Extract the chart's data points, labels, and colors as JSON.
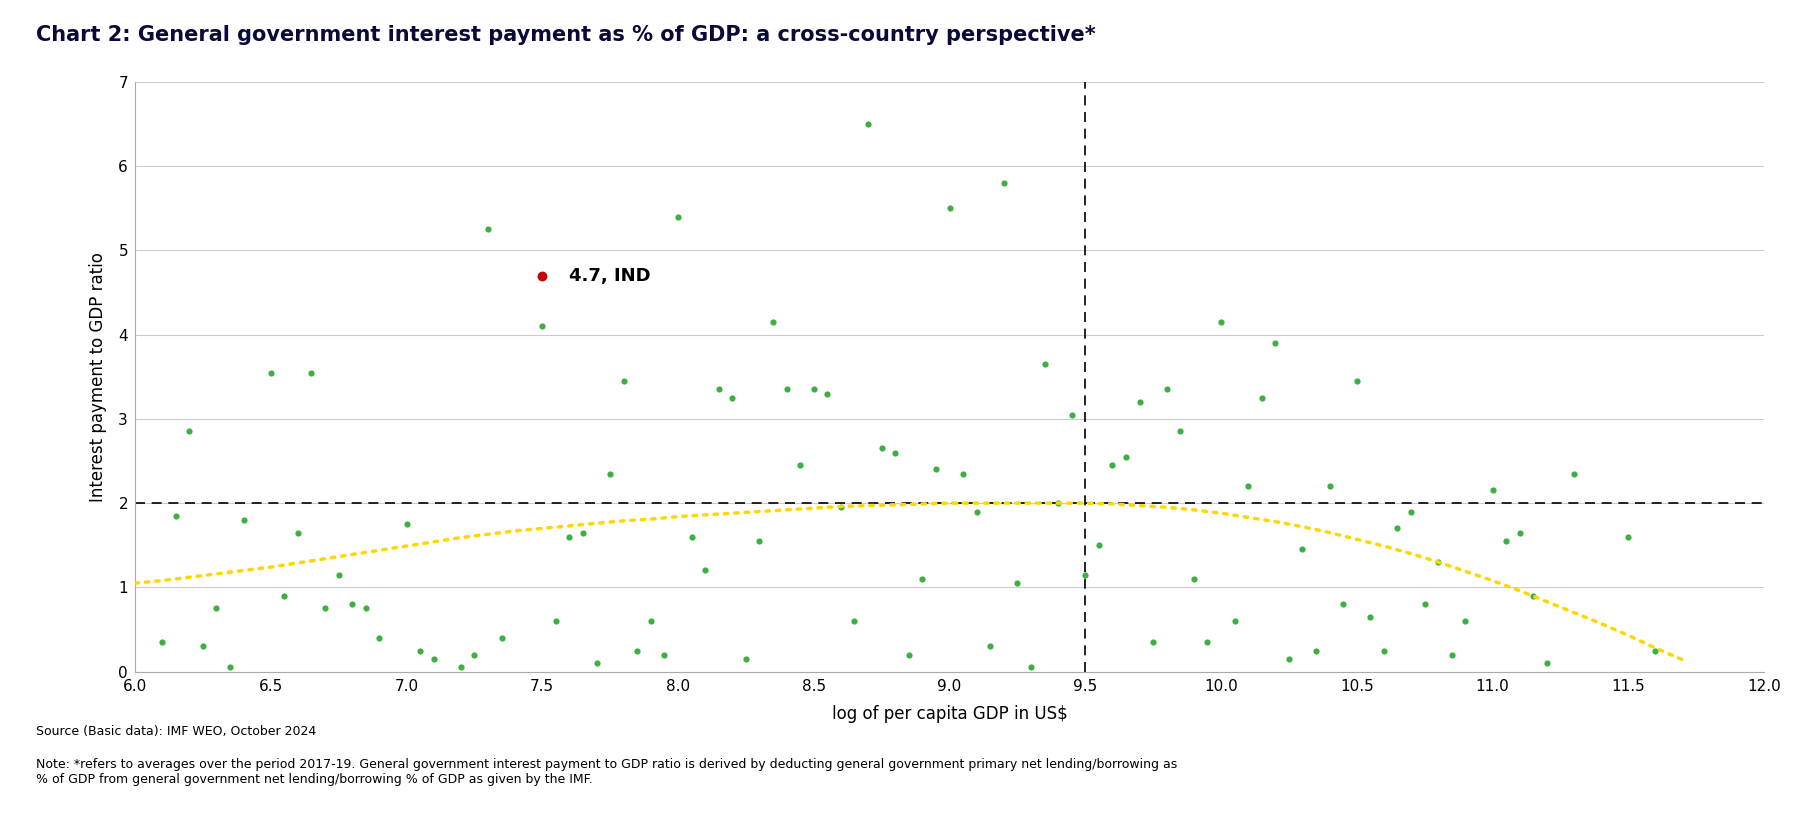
{
  "title": "Chart 2: General government interest payment as % of GDP: a cross-country perspective*",
  "xlabel": "log of per capita GDP in US$",
  "ylabel": "Interest payment to GDP ratio",
  "xlim": [
    6,
    12
  ],
  "ylim": [
    0,
    7
  ],
  "yticks": [
    0,
    1,
    2,
    3,
    4,
    5,
    6,
    7
  ],
  "xticks": [
    6,
    6.5,
    7,
    7.5,
    8,
    8.5,
    9,
    9.5,
    10,
    10.5,
    11,
    11.5,
    12
  ],
  "vline_x": 9.5,
  "hline_y": 2.0,
  "ind_x": 7.5,
  "ind_y": 4.7,
  "ind_label": "4.7, IND",
  "source_text": "Source (Basic data): IMF WEO, October 2024",
  "note_text": "Note: *refers to averages over the period 2017-19. General government interest payment to GDP ratio is derived by deducting general government primary net lending/borrowing as\n% of GDP from general government net lending/borrowing % of GDP as given by the IMF.",
  "scatter_color": "#3CB043",
  "ind_color": "#CC0000",
  "trend_color": "#FFD700",
  "background_color": "#FFFFFF",
  "grid_color": "#CCCCCC",
  "title_color": "#0a0a3a",
  "scatter_points": [
    [
      6.1,
      0.35
    ],
    [
      6.15,
      1.85
    ],
    [
      6.2,
      2.85
    ],
    [
      6.25,
      0.3
    ],
    [
      6.3,
      0.75
    ],
    [
      6.35,
      0.05
    ],
    [
      6.4,
      1.8
    ],
    [
      6.5,
      3.55
    ],
    [
      6.55,
      0.9
    ],
    [
      6.6,
      1.65
    ],
    [
      6.65,
      3.55
    ],
    [
      6.7,
      0.75
    ],
    [
      6.75,
      1.15
    ],
    [
      6.8,
      0.8
    ],
    [
      6.85,
      0.75
    ],
    [
      6.9,
      0.4
    ],
    [
      7.0,
      1.75
    ],
    [
      7.05,
      0.25
    ],
    [
      7.1,
      0.15
    ],
    [
      7.2,
      0.05
    ],
    [
      7.25,
      0.2
    ],
    [
      7.3,
      5.25
    ],
    [
      7.35,
      0.4
    ],
    [
      7.5,
      4.1
    ],
    [
      7.55,
      0.6
    ],
    [
      7.6,
      1.6
    ],
    [
      7.65,
      1.65
    ],
    [
      7.7,
      0.1
    ],
    [
      7.75,
      2.35
    ],
    [
      7.8,
      3.45
    ],
    [
      7.85,
      0.25
    ],
    [
      7.9,
      0.6
    ],
    [
      7.95,
      0.2
    ],
    [
      8.0,
      5.4
    ],
    [
      8.05,
      1.6
    ],
    [
      8.1,
      1.2
    ],
    [
      8.15,
      3.35
    ],
    [
      8.2,
      3.25
    ],
    [
      8.25,
      0.15
    ],
    [
      8.3,
      1.55
    ],
    [
      8.35,
      4.15
    ],
    [
      8.4,
      3.35
    ],
    [
      8.45,
      2.45
    ],
    [
      8.5,
      3.35
    ],
    [
      8.55,
      3.3
    ],
    [
      8.6,
      1.95
    ],
    [
      8.65,
      0.6
    ],
    [
      8.7,
      6.5
    ],
    [
      8.75,
      2.65
    ],
    [
      8.8,
      2.6
    ],
    [
      8.85,
      0.2
    ],
    [
      8.9,
      1.1
    ],
    [
      8.95,
      2.4
    ],
    [
      9.0,
      5.5
    ],
    [
      9.05,
      2.35
    ],
    [
      9.1,
      1.9
    ],
    [
      9.15,
      0.3
    ],
    [
      9.2,
      5.8
    ],
    [
      9.25,
      1.05
    ],
    [
      9.3,
      0.05
    ],
    [
      9.35,
      3.65
    ],
    [
      9.4,
      2.0
    ],
    [
      9.45,
      3.05
    ],
    [
      9.5,
      1.15
    ],
    [
      9.55,
      1.5
    ],
    [
      9.6,
      2.45
    ],
    [
      9.65,
      2.55
    ],
    [
      9.7,
      3.2
    ],
    [
      9.75,
      0.35
    ],
    [
      9.8,
      3.35
    ],
    [
      9.85,
      2.85
    ],
    [
      9.9,
      1.1
    ],
    [
      9.95,
      0.35
    ],
    [
      10.0,
      4.15
    ],
    [
      10.05,
      0.6
    ],
    [
      10.1,
      2.2
    ],
    [
      10.15,
      3.25
    ],
    [
      10.2,
      3.9
    ],
    [
      10.25,
      0.15
    ],
    [
      10.3,
      1.45
    ],
    [
      10.35,
      0.25
    ],
    [
      10.4,
      2.2
    ],
    [
      10.45,
      0.8
    ],
    [
      10.5,
      3.45
    ],
    [
      10.55,
      0.65
    ],
    [
      10.6,
      0.25
    ],
    [
      10.65,
      1.7
    ],
    [
      10.7,
      1.9
    ],
    [
      10.75,
      0.8
    ],
    [
      10.8,
      1.3
    ],
    [
      10.85,
      0.2
    ],
    [
      10.9,
      0.6
    ],
    [
      11.0,
      2.15
    ],
    [
      11.05,
      1.55
    ],
    [
      11.1,
      1.65
    ],
    [
      11.15,
      0.9
    ],
    [
      11.2,
      0.1
    ],
    [
      11.3,
      2.35
    ],
    [
      11.5,
      1.6
    ],
    [
      11.6,
      0.25
    ]
  ],
  "trend_points": [
    [
      6.0,
      1.05
    ],
    [
      6.1,
      1.08
    ],
    [
      6.2,
      1.12
    ],
    [
      6.3,
      1.16
    ],
    [
      6.4,
      1.2
    ],
    [
      6.5,
      1.24
    ],
    [
      6.6,
      1.29
    ],
    [
      6.7,
      1.34
    ],
    [
      6.8,
      1.39
    ],
    [
      6.9,
      1.44
    ],
    [
      7.0,
      1.49
    ],
    [
      7.1,
      1.54
    ],
    [
      7.2,
      1.59
    ],
    [
      7.3,
      1.63
    ],
    [
      7.4,
      1.67
    ],
    [
      7.5,
      1.7
    ],
    [
      7.6,
      1.73
    ],
    [
      7.7,
      1.76
    ],
    [
      7.8,
      1.79
    ],
    [
      7.9,
      1.81
    ],
    [
      8.0,
      1.84
    ],
    [
      8.1,
      1.86
    ],
    [
      8.2,
      1.88
    ],
    [
      8.3,
      1.9
    ],
    [
      8.4,
      1.92
    ],
    [
      8.5,
      1.94
    ],
    [
      8.6,
      1.96
    ],
    [
      8.7,
      1.97
    ],
    [
      8.8,
      1.98
    ],
    [
      8.9,
      1.99
    ],
    [
      9.0,
      2.0
    ],
    [
      9.1,
      2.0
    ],
    [
      9.2,
      2.0
    ],
    [
      9.3,
      2.0
    ],
    [
      9.4,
      2.0
    ],
    [
      9.5,
      2.0
    ],
    [
      9.6,
      1.99
    ],
    [
      9.7,
      1.97
    ],
    [
      9.8,
      1.95
    ],
    [
      9.9,
      1.92
    ],
    [
      10.0,
      1.88
    ],
    [
      10.1,
      1.83
    ],
    [
      10.2,
      1.78
    ],
    [
      10.3,
      1.72
    ],
    [
      10.4,
      1.65
    ],
    [
      10.5,
      1.57
    ],
    [
      10.6,
      1.49
    ],
    [
      10.7,
      1.4
    ],
    [
      10.8,
      1.3
    ],
    [
      10.9,
      1.19
    ],
    [
      11.0,
      1.08
    ],
    [
      11.1,
      0.96
    ],
    [
      11.2,
      0.83
    ],
    [
      11.3,
      0.7
    ],
    [
      11.4,
      0.57
    ],
    [
      11.5,
      0.43
    ],
    [
      11.6,
      0.28
    ],
    [
      11.7,
      0.14
    ]
  ]
}
